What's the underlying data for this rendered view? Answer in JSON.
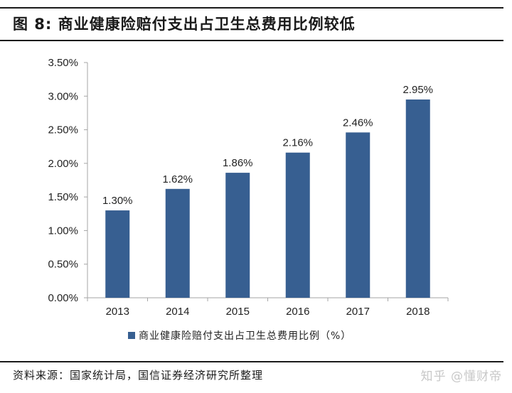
{
  "header": {
    "title": "图 8:  商业健康险赔付支出占卫生总费用比例较低"
  },
  "chart_data": {
    "type": "bar",
    "title": "图 8: 商业健康险赔付支出占卫生总费用比例较低",
    "categories": [
      "2013",
      "2014",
      "2015",
      "2016",
      "2017",
      "2018"
    ],
    "series": [
      {
        "name": "商业健康险赔付支出占卫生总费用比例（%）",
        "values": [
          1.3,
          1.62,
          1.86,
          2.16,
          2.46,
          2.95
        ],
        "labels": [
          "1.30%",
          "1.62%",
          "1.86%",
          "2.16%",
          "2.46%",
          "2.95%"
        ],
        "color": "#375f91"
      }
    ],
    "xlabel": "",
    "ylabel": "",
    "ylim": [
      0,
      3.5
    ],
    "yticks": [
      "0.00%",
      "0.50%",
      "1.00%",
      "1.50%",
      "2.00%",
      "2.50%",
      "3.00%",
      "3.50%"
    ],
    "grid": false,
    "legend_position": "bottom"
  },
  "legend": {
    "label": "商业健康险赔付支出占卫生总费用比例（%）"
  },
  "footer": {
    "source": "资料来源：国家统计局，国信证券经济研究所整理",
    "watermark": "知乎 @懂财帝"
  },
  "colors": {
    "bar": "#375f91",
    "axis": "#a6a6a6",
    "text": "#222222"
  }
}
